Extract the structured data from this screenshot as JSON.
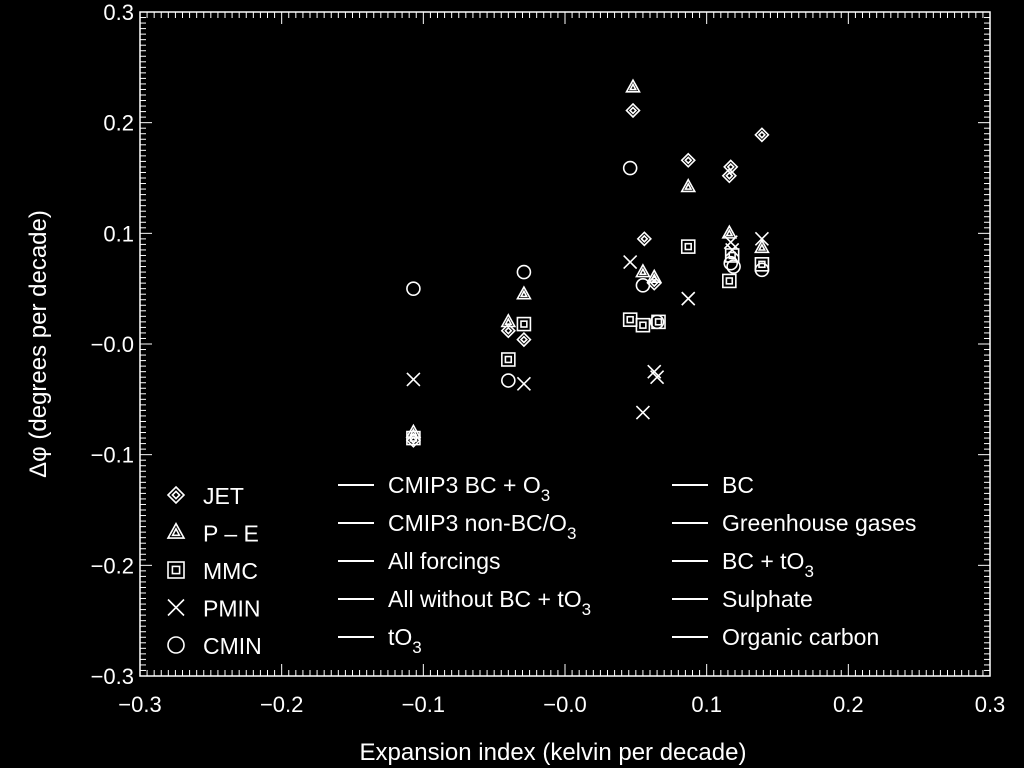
{
  "chart_data": {
    "type": "scatter",
    "xlabel": "Expansion index (kelvin per decade)",
    "ylabel": "Δφ (degrees per decade)",
    "xlim": [
      -0.3,
      0.3
    ],
    "ylim": [
      -0.3,
      0.3
    ],
    "xticks": [
      "−0.3",
      "−0.2",
      "−0.1",
      "−0.0",
      "0.1",
      "0.2",
      "0.3"
    ],
    "yticks": [
      "−0.3",
      "−0.2",
      "−0.1",
      "−0.0",
      "0.1",
      "0.2",
      "0.3"
    ],
    "grid": false,
    "series": [
      {
        "name": "JET",
        "marker": "diamond",
        "points": [
          [
            -0.107,
            -0.087
          ],
          [
            -0.029,
            0.004
          ],
          [
            -0.04,
            0.012
          ],
          [
            0.048,
            0.211
          ],
          [
            0.056,
            0.095
          ],
          [
            0.087,
            0.166
          ],
          [
            0.117,
            0.16
          ],
          [
            0.116,
            0.152
          ],
          [
            0.139,
            0.189
          ],
          [
            0.063,
            0.055
          ]
        ]
      },
      {
        "name": "P – E",
        "marker": "triangle",
        "points": [
          [
            -0.107,
            -0.08
          ],
          [
            -0.029,
            0.045
          ],
          [
            -0.04,
            0.02
          ],
          [
            0.048,
            0.232
          ],
          [
            0.055,
            0.065
          ],
          [
            0.087,
            0.142
          ],
          [
            0.116,
            0.1
          ],
          [
            0.139,
            0.087
          ],
          [
            0.063,
            0.06
          ]
        ]
      },
      {
        "name": "MMC",
        "marker": "square",
        "points": [
          [
            -0.107,
            -0.085
          ],
          [
            -0.029,
            0.018
          ],
          [
            -0.04,
            -0.014
          ],
          [
            0.046,
            0.022
          ],
          [
            0.055,
            0.017
          ],
          [
            0.066,
            0.02
          ],
          [
            0.087,
            0.088
          ],
          [
            0.116,
            0.057
          ],
          [
            0.139,
            0.072
          ],
          [
            0.118,
            0.08
          ]
        ]
      },
      {
        "name": "PMIN",
        "marker": "x",
        "points": [
          [
            -0.107,
            -0.032
          ],
          [
            -0.029,
            -0.036
          ],
          [
            0.046,
            0.074
          ],
          [
            0.055,
            -0.062
          ],
          [
            0.063,
            -0.025
          ],
          [
            0.065,
            -0.03
          ],
          [
            0.087,
            0.041
          ],
          [
            0.117,
            0.092
          ],
          [
            0.139,
            0.095
          ],
          [
            0.118,
            0.085
          ]
        ]
      },
      {
        "name": "CMIN",
        "marker": "circle",
        "points": [
          [
            -0.107,
            0.05
          ],
          [
            -0.029,
            0.065
          ],
          [
            -0.04,
            -0.033
          ],
          [
            0.046,
            0.159
          ],
          [
            0.055,
            0.053
          ],
          [
            0.065,
            0.02
          ],
          [
            0.117,
            0.073
          ],
          [
            0.139,
            0.067
          ],
          [
            0.119,
            0.07
          ]
        ]
      }
    ],
    "legend_markers": [
      "JET",
      "P – E",
      "MMC",
      "PMIN",
      "CMIN"
    ],
    "legend_experiments": [
      {
        "label": "CMIP3 BC + O",
        "sub": "3"
      },
      {
        "label": "CMIP3 non-BC/O",
        "sub": "3"
      },
      {
        "label": "All forcings",
        "sub": ""
      },
      {
        "label": "All without BC + tO",
        "sub": "3"
      },
      {
        "label": "tO",
        "sub": "3"
      },
      {
        "label": "BC",
        "sub": ""
      },
      {
        "label": "Greenhouse gases",
        "sub": ""
      },
      {
        "label": "BC + tO",
        "sub": "3"
      },
      {
        "label": "Sulphate",
        "sub": ""
      },
      {
        "label": "Organic carbon",
        "sub": ""
      }
    ],
    "legend_placement": "bottom"
  }
}
